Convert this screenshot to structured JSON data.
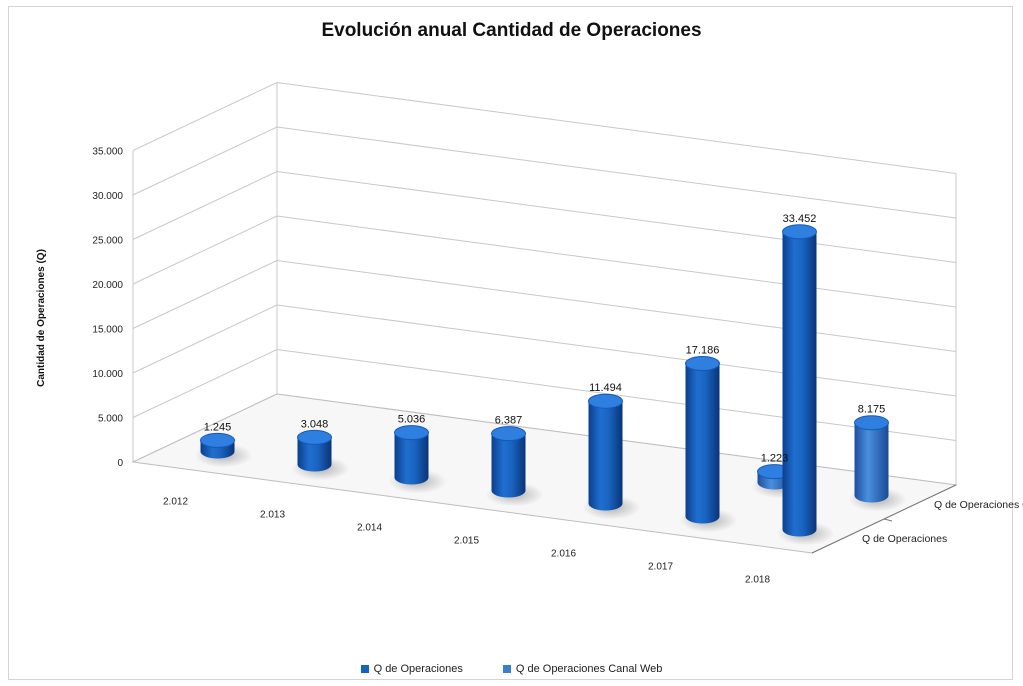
{
  "chart_data": {
    "type": "bar",
    "title": "Evolución anual Cantidad de Operaciones",
    "ylabel": "Cantidad de Operaciones (Q)",
    "xlabel": "",
    "categories": [
      "2.012",
      "2.013",
      "2.014",
      "2.015",
      "2.016",
      "2.017",
      "2.018"
    ],
    "y_tick_labels": [
      "0",
      "5.000",
      "10.000",
      "15.000",
      "20.000",
      "25.000",
      "30.000",
      "35.000"
    ],
    "ylim": [
      0,
      35000
    ],
    "grid": true,
    "legend_position": "bottom",
    "series": [
      {
        "name": "Q de Operaciones",
        "color": "#1565c0",
        "values": [
          1245,
          3048,
          5036,
          6387,
          11494,
          17186,
          33452
        ],
        "labels": [
          "1.245",
          "3.048",
          "5.036",
          "6.387",
          "11.494",
          "17.186",
          "33.452"
        ]
      },
      {
        "name": "Q de Operaciones Canal Web",
        "color": "#3a7fd0",
        "values": [
          null,
          null,
          null,
          null,
          null,
          1223,
          8175
        ],
        "labels": [
          "",
          "",
          "",
          "",
          "",
          "1.223",
          "8.175"
        ]
      }
    ]
  }
}
